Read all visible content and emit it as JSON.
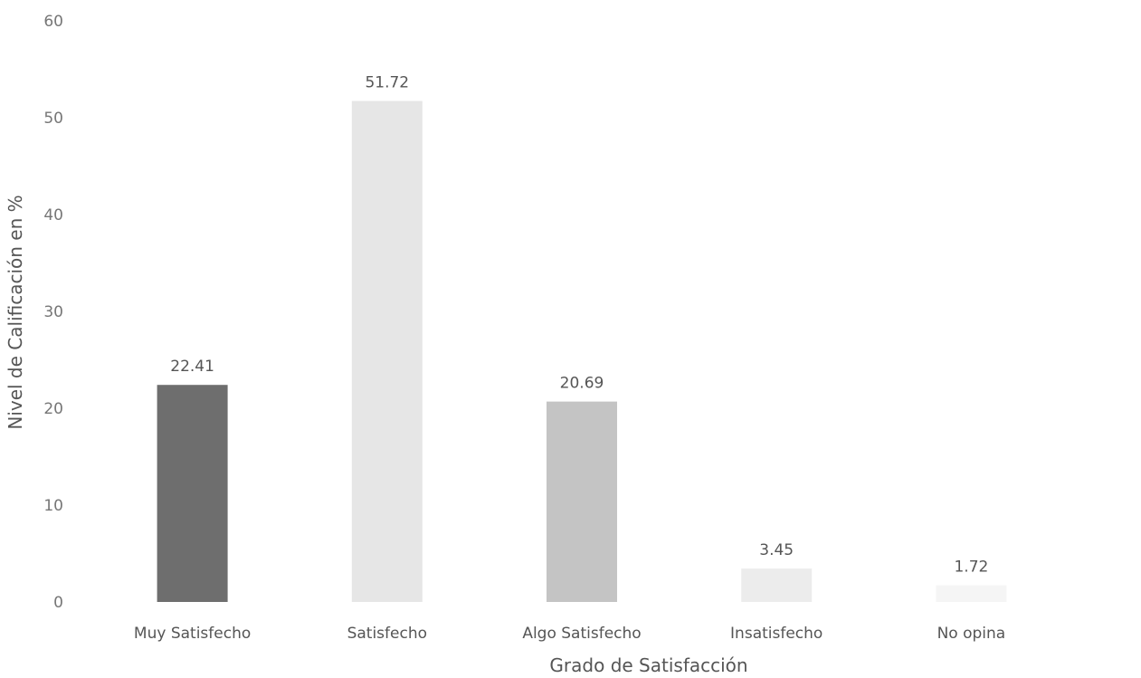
{
  "chart_data": {
    "type": "bar",
    "title": "",
    "xlabel": "Grado de Satisfacción",
    "ylabel": "Nivel de Calificación en %",
    "categories": [
      "Muy Satisfecho",
      "Satisfecho",
      "Algo Satisfecho",
      "Insatisfecho",
      "No opina"
    ],
    "values": [
      22.41,
      51.72,
      20.69,
      3.45,
      1.72
    ],
    "value_labels": [
      "22.41",
      "51.72",
      "20.69",
      "3.45",
      "1.72"
    ],
    "y_ticks": [
      "0",
      "10",
      "20",
      "30",
      "40",
      "50",
      "60"
    ],
    "ylim": [
      0,
      60
    ],
    "grid": false,
    "legend": "none",
    "bar_colors": [
      "#6e6e6e",
      "#e6e6e6",
      "#c4c4c4",
      "#ececec",
      "#f5f5f5"
    ]
  }
}
